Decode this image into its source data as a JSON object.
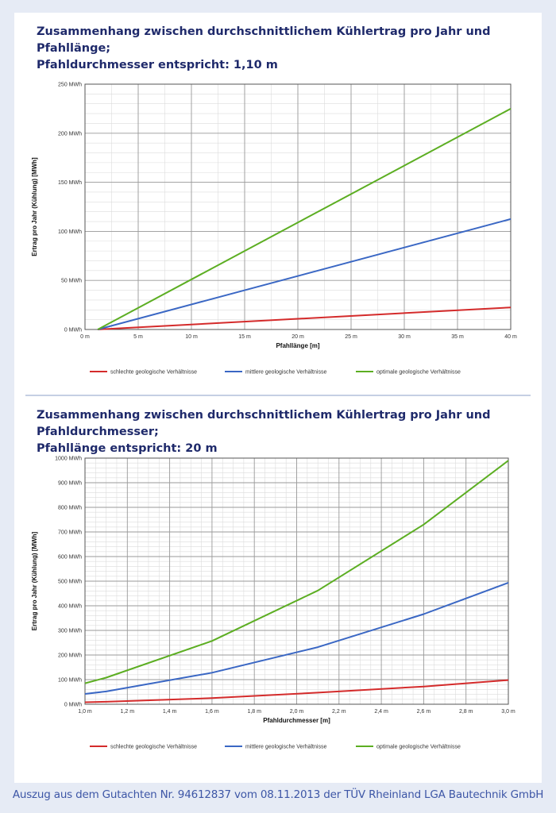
{
  "chart_data": [
    {
      "type": "line",
      "title": "Zusammenhang zwischen durchschnittlichem Kühlertrag pro Jahr und Pfahllänge;",
      "subtitle": "Pfahldurchmesser entspricht: 1,10 m",
      "xlabel": "Pfahllänge [m]",
      "ylabel": "Ertrag pro Jahr (Kühlung) [MWh]",
      "xlim": [
        0,
        40
      ],
      "ylim": [
        0,
        250
      ],
      "x_ticks": [
        0,
        5,
        10,
        15,
        20,
        25,
        30,
        35,
        40
      ],
      "x_tick_labels": [
        "0 m",
        "5 m",
        "10 m",
        "15 m",
        "20 m",
        "25 m",
        "30 m",
        "35 m",
        "40 m"
      ],
      "y_ticks": [
        0,
        50,
        100,
        150,
        200,
        250
      ],
      "y_tick_labels": [
        "0 MWh",
        "50 MWh",
        "100 MWh",
        "150 MWh",
        "200 MWh",
        "250 MWh"
      ],
      "grid": true,
      "x_minor_step": 2.5,
      "y_minor_step": 10,
      "legend_position": "bottom",
      "series": [
        {
          "name": "schlechte geologische Verhältnisse",
          "color": "#d42b2b",
          "x": [
            1.2,
            40
          ],
          "y": [
            0,
            22.5
          ]
        },
        {
          "name": "mittlere geologische Verhältnisse",
          "color": "#3a67c4",
          "x": [
            1.2,
            40
          ],
          "y": [
            0,
            112.5
          ]
        },
        {
          "name": "optimale geologische Verhältnisse",
          "color": "#5cae22",
          "x": [
            1.2,
            40
          ],
          "y": [
            0,
            225
          ]
        }
      ]
    },
    {
      "type": "line",
      "title": "Zusammenhang zwischen durchschnittlichem Kühlertrag pro Jahr und Pfahldurchmesser;",
      "subtitle": "Pfahllänge entspricht: 20 m",
      "xlabel": "Pfahldurchmesser [m]",
      "ylabel": "Ertrag pro Jahr (Kühlung) [MWh]",
      "xlim": [
        1.0,
        3.0
      ],
      "ylim": [
        0,
        1000
      ],
      "x_ticks": [
        1.0,
        1.2,
        1.4,
        1.6,
        1.8,
        2.0,
        2.2,
        2.4,
        2.6,
        2.8,
        3.0
      ],
      "x_tick_labels": [
        "1,0 m",
        "1,2 m",
        "1,4 m",
        "1,6 m",
        "1,8 m",
        "2,0 m",
        "2,2 m",
        "2,4 m",
        "2,6 m",
        "2,8 m",
        "3,0 m"
      ],
      "y_ticks": [
        0,
        100,
        200,
        300,
        400,
        500,
        600,
        700,
        800,
        900,
        1000
      ],
      "y_tick_labels": [
        "0 MWh",
        "100 MWh",
        "200 MWh",
        "300 MWh",
        "400 MWh",
        "500 MWh",
        "600 MWh",
        "700 MWh",
        "800 MWh",
        "900 MWh",
        "1000 MWh"
      ],
      "grid": true,
      "x_minor_step": 0.05,
      "y_minor_step": 20,
      "legend_position": "bottom",
      "series": [
        {
          "name": "schlechte geologische Verhältnisse",
          "color": "#d42b2b",
          "x": [
            1.0,
            1.1,
            1.6,
            2.1,
            2.6,
            3.0
          ],
          "y": [
            8,
            10,
            25,
            47,
            72,
            98
          ]
        },
        {
          "name": "mittlere geologische Verhältnisse",
          "color": "#3a67c4",
          "x": [
            1.0,
            1.1,
            1.6,
            2.1,
            2.6,
            3.0
          ],
          "y": [
            42,
            52,
            128,
            232,
            366,
            494
          ]
        },
        {
          "name": "optimale geologische Verhältnisse",
          "color": "#5cae22",
          "x": [
            1.0,
            1.1,
            1.6,
            2.1,
            2.6,
            3.0
          ],
          "y": [
            85,
            108,
            257,
            462,
            730,
            990
          ]
        }
      ]
    }
  ],
  "footer": "Auszug aus dem Gutachten Nr. 94612837 vom 08.11.2013 der TÜV Rheinland LGA Bautechnik GmbH"
}
